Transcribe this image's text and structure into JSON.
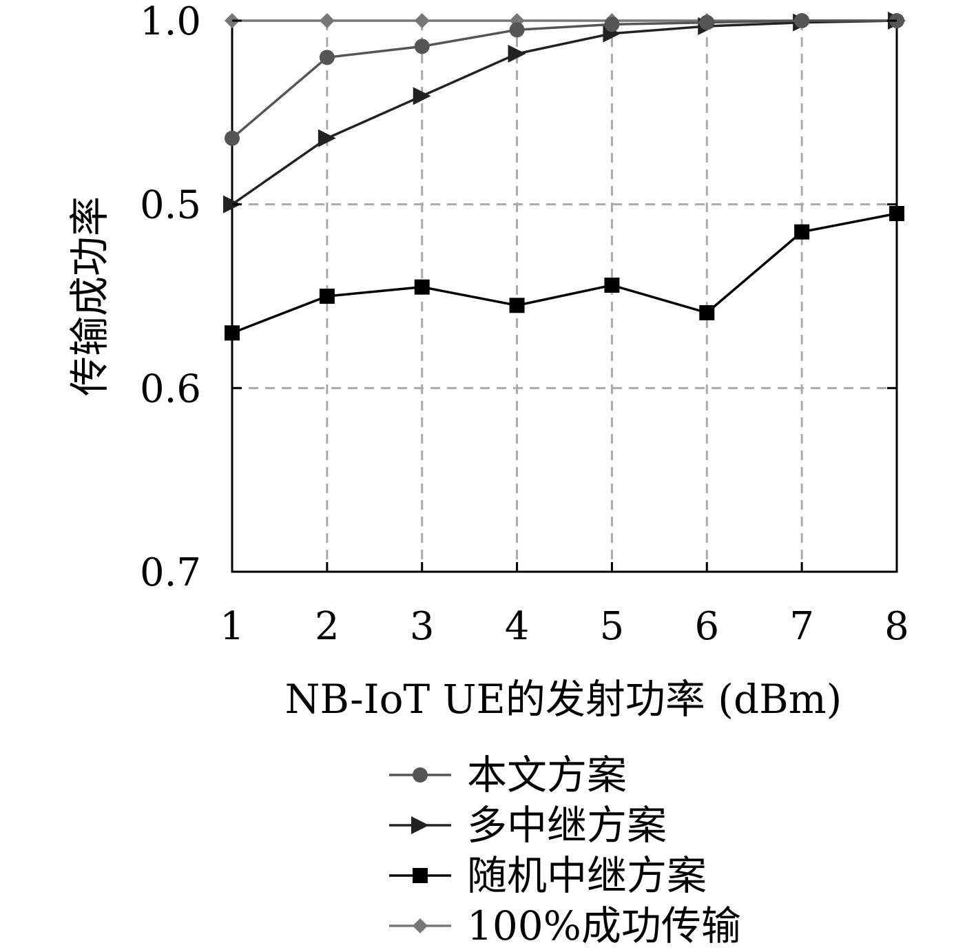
{
  "chart_data": {
    "type": "line",
    "title": "",
    "xlabel": "NB-IoT UE的发射功率 (dBm)",
    "ylabel": "传输成功率",
    "x": [
      1,
      2,
      3,
      4,
      5,
      6,
      7,
      8
    ],
    "x_ticks": [
      "1",
      "2",
      "3",
      "4",
      "5",
      "6",
      "7",
      "8"
    ],
    "y_ticks": [
      "1.0",
      "0.5",
      "0.6",
      "0.7"
    ],
    "grid": true,
    "legend_position": "bottom-center",
    "series": [
      {
        "name": "本文方案",
        "marker": "circle",
        "color": "#555555",
        "values": [
          0.936,
          0.98,
          0.986,
          0.995,
          0.998,
          0.999,
          1.0,
          1.0
        ]
      },
      {
        "name": "多中继方案",
        "marker": "triangle-right",
        "color": "#222222",
        "values": [
          0.9,
          0.936,
          0.959,
          0.982,
          0.993,
          0.997,
          0.999,
          1.0
        ]
      },
      {
        "name": "随机中继方案",
        "marker": "square",
        "color": "#000000",
        "values": [
          0.83,
          0.85,
          0.855,
          0.845,
          0.856,
          0.841,
          0.885,
          0.895
        ]
      },
      {
        "name": "100%成功传输",
        "marker": "diamond",
        "color": "#777777",
        "values": [
          1.0,
          1.0,
          1.0,
          1.0,
          1.0,
          1.0,
          1.0,
          1.0
        ]
      }
    ]
  }
}
